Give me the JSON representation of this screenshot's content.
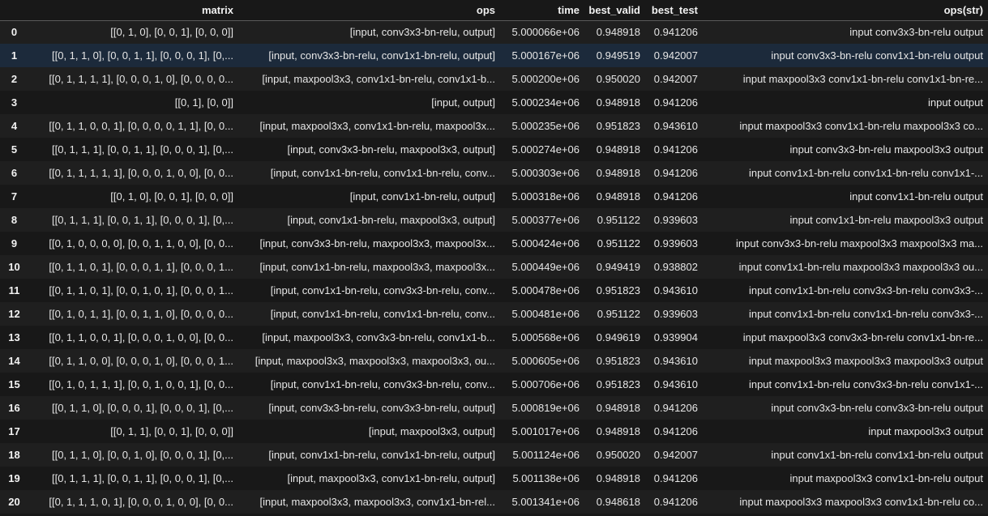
{
  "table": {
    "columns": [
      "",
      "matrix",
      "ops",
      "time",
      "best_valid",
      "best_test",
      "ops(str)"
    ],
    "hovered_row": 1,
    "rows": [
      {
        "index": "0",
        "matrix": "[[0, 1, 0], [0, 0, 1], [0, 0, 0]]",
        "ops": "[input, conv3x3-bn-relu, output]",
        "time": "5.000066e+06",
        "best_valid": "0.948918",
        "best_test": "0.941206",
        "ops_str": "input conv3x3-bn-relu output"
      },
      {
        "index": "1",
        "matrix": "[[0, 1, 1, 0], [0, 0, 1, 1], [0, 0, 0, 1], [0,...",
        "ops": "[input, conv3x3-bn-relu, conv1x1-bn-relu, output]",
        "time": "5.000167e+06",
        "best_valid": "0.949519",
        "best_test": "0.942007",
        "ops_str": "input conv3x3-bn-relu conv1x1-bn-relu output"
      },
      {
        "index": "2",
        "matrix": "[[0, 1, 1, 1, 1], [0, 0, 0, 1, 0], [0, 0, 0, 0...",
        "ops": "[input, maxpool3x3, conv1x1-bn-relu, conv1x1-b...",
        "time": "5.000200e+06",
        "best_valid": "0.950020",
        "best_test": "0.942007",
        "ops_str": "input maxpool3x3 conv1x1-bn-relu conv1x1-bn-re..."
      },
      {
        "index": "3",
        "matrix": "[[0, 1], [0, 0]]",
        "ops": "[input, output]",
        "time": "5.000234e+06",
        "best_valid": "0.948918",
        "best_test": "0.941206",
        "ops_str": "input output"
      },
      {
        "index": "4",
        "matrix": "[[0, 1, 1, 0, 0, 1], [0, 0, 0, 0, 1, 1], [0, 0...",
        "ops": "[input, maxpool3x3, conv1x1-bn-relu, maxpool3x...",
        "time": "5.000235e+06",
        "best_valid": "0.951823",
        "best_test": "0.943610",
        "ops_str": "input maxpool3x3 conv1x1-bn-relu maxpool3x3 co..."
      },
      {
        "index": "5",
        "matrix": "[[0, 1, 1, 1], [0, 0, 1, 1], [0, 0, 0, 1], [0,...",
        "ops": "[input, conv3x3-bn-relu, maxpool3x3, output]",
        "time": "5.000274e+06",
        "best_valid": "0.948918",
        "best_test": "0.941206",
        "ops_str": "input conv3x3-bn-relu maxpool3x3 output"
      },
      {
        "index": "6",
        "matrix": "[[0, 1, 1, 1, 1, 1], [0, 0, 0, 1, 0, 0], [0, 0...",
        "ops": "[input, conv1x1-bn-relu, conv1x1-bn-relu, conv...",
        "time": "5.000303e+06",
        "best_valid": "0.948918",
        "best_test": "0.941206",
        "ops_str": "input conv1x1-bn-relu conv1x1-bn-relu conv1x1-..."
      },
      {
        "index": "7",
        "matrix": "[[0, 1, 0], [0, 0, 1], [0, 0, 0]]",
        "ops": "[input, conv1x1-bn-relu, output]",
        "time": "5.000318e+06",
        "best_valid": "0.948918",
        "best_test": "0.941206",
        "ops_str": "input conv1x1-bn-relu output"
      },
      {
        "index": "8",
        "matrix": "[[0, 1, 1, 1], [0, 0, 1, 1], [0, 0, 0, 1], [0,...",
        "ops": "[input, conv1x1-bn-relu, maxpool3x3, output]",
        "time": "5.000377e+06",
        "best_valid": "0.951122",
        "best_test": "0.939603",
        "ops_str": "input conv1x1-bn-relu maxpool3x3 output"
      },
      {
        "index": "9",
        "matrix": "[[0, 1, 0, 0, 0, 0], [0, 0, 1, 1, 0, 0], [0, 0...",
        "ops": "[input, conv3x3-bn-relu, maxpool3x3, maxpool3x...",
        "time": "5.000424e+06",
        "best_valid": "0.951122",
        "best_test": "0.939603",
        "ops_str": "input conv3x3-bn-relu maxpool3x3 maxpool3x3 ma..."
      },
      {
        "index": "10",
        "matrix": "[[0, 1, 1, 0, 1], [0, 0, 0, 1, 1], [0, 0, 0, 1...",
        "ops": "[input, conv1x1-bn-relu, maxpool3x3, maxpool3x...",
        "time": "5.000449e+06",
        "best_valid": "0.949419",
        "best_test": "0.938802",
        "ops_str": "input conv1x1-bn-relu maxpool3x3 maxpool3x3 ou..."
      },
      {
        "index": "11",
        "matrix": "[[0, 1, 1, 0, 1], [0, 0, 1, 0, 1], [0, 0, 0, 1...",
        "ops": "[input, conv1x1-bn-relu, conv3x3-bn-relu, conv...",
        "time": "5.000478e+06",
        "best_valid": "0.951823",
        "best_test": "0.943610",
        "ops_str": "input conv1x1-bn-relu conv3x3-bn-relu conv3x3-..."
      },
      {
        "index": "12",
        "matrix": "[[0, 1, 0, 1, 1], [0, 0, 1, 1, 0], [0, 0, 0, 0...",
        "ops": "[input, conv1x1-bn-relu, conv1x1-bn-relu, conv...",
        "time": "5.000481e+06",
        "best_valid": "0.951122",
        "best_test": "0.939603",
        "ops_str": "input conv1x1-bn-relu conv1x1-bn-relu conv3x3-..."
      },
      {
        "index": "13",
        "matrix": "[[0, 1, 1, 0, 0, 1], [0, 0, 0, 1, 0, 0], [0, 0...",
        "ops": "[input, maxpool3x3, conv3x3-bn-relu, conv1x1-b...",
        "time": "5.000568e+06",
        "best_valid": "0.949619",
        "best_test": "0.939904",
        "ops_str": "input maxpool3x3 conv3x3-bn-relu conv1x1-bn-re..."
      },
      {
        "index": "14",
        "matrix": "[[0, 1, 1, 0, 0], [0, 0, 0, 1, 0], [0, 0, 0, 1...",
        "ops": "[input, maxpool3x3, maxpool3x3, maxpool3x3, ou...",
        "time": "5.000605e+06",
        "best_valid": "0.951823",
        "best_test": "0.943610",
        "ops_str": "input maxpool3x3 maxpool3x3 maxpool3x3 output"
      },
      {
        "index": "15",
        "matrix": "[[0, 1, 0, 1, 1, 1], [0, 0, 1, 0, 0, 1], [0, 0...",
        "ops": "[input, conv1x1-bn-relu, conv3x3-bn-relu, conv...",
        "time": "5.000706e+06",
        "best_valid": "0.951823",
        "best_test": "0.943610",
        "ops_str": "input conv1x1-bn-relu conv3x3-bn-relu conv1x1-..."
      },
      {
        "index": "16",
        "matrix": "[[0, 1, 1, 0], [0, 0, 0, 1], [0, 0, 0, 1], [0,...",
        "ops": "[input, conv3x3-bn-relu, conv3x3-bn-relu, output]",
        "time": "5.000819e+06",
        "best_valid": "0.948918",
        "best_test": "0.941206",
        "ops_str": "input conv3x3-bn-relu conv3x3-bn-relu output"
      },
      {
        "index": "17",
        "matrix": "[[0, 1, 1], [0, 0, 1], [0, 0, 0]]",
        "ops": "[input, maxpool3x3, output]",
        "time": "5.001017e+06",
        "best_valid": "0.948918",
        "best_test": "0.941206",
        "ops_str": "input maxpool3x3 output"
      },
      {
        "index": "18",
        "matrix": "[[0, 1, 1, 0], [0, 0, 1, 0], [0, 0, 0, 1], [0,...",
        "ops": "[input, conv1x1-bn-relu, conv1x1-bn-relu, output]",
        "time": "5.001124e+06",
        "best_valid": "0.950020",
        "best_test": "0.942007",
        "ops_str": "input conv1x1-bn-relu conv1x1-bn-relu output"
      },
      {
        "index": "19",
        "matrix": "[[0, 1, 1, 1], [0, 0, 1, 1], [0, 0, 0, 1], [0,...",
        "ops": "[input, maxpool3x3, conv1x1-bn-relu, output]",
        "time": "5.001138e+06",
        "best_valid": "0.948918",
        "best_test": "0.941206",
        "ops_str": "input maxpool3x3 conv1x1-bn-relu output"
      },
      {
        "index": "20",
        "matrix": "[[0, 1, 1, 1, 0, 1], [0, 0, 0, 1, 0, 0], [0, 0...",
        "ops": "[input, maxpool3x3, maxpool3x3, conv1x1-bn-rel...",
        "time": "5.001341e+06",
        "best_valid": "0.948618",
        "best_test": "0.941206",
        "ops_str": "input maxpool3x3 maxpool3x3 conv1x1-bn-relu co..."
      }
    ]
  }
}
